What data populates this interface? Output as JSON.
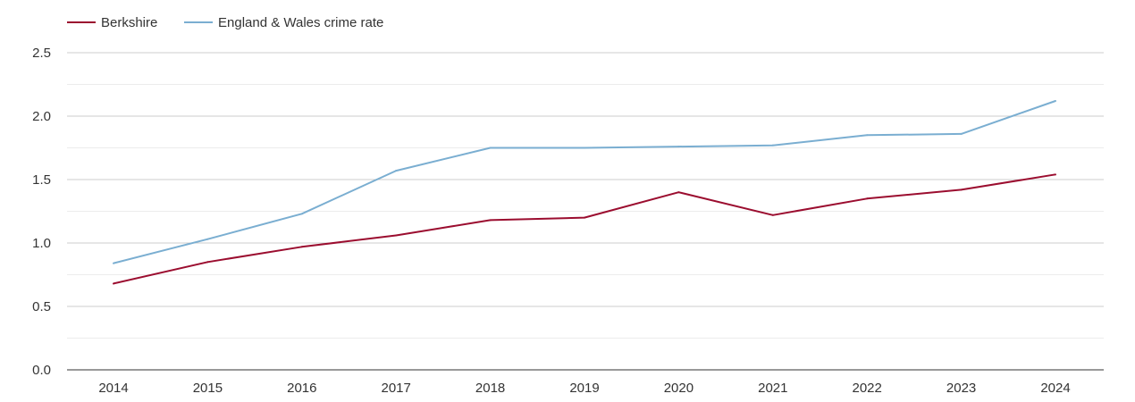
{
  "chart_data": {
    "type": "line",
    "title": "",
    "xlabel": "",
    "ylabel": "",
    "x": [
      "2014",
      "2015",
      "2016",
      "2017",
      "2018",
      "2019",
      "2020",
      "2021",
      "2022",
      "2023",
      "2024"
    ],
    "ylim": [
      0,
      2.5
    ],
    "y_ticks": [
      "0.0",
      "0.5",
      "1.0",
      "1.5",
      "2.0",
      "2.5"
    ],
    "grid": true,
    "legend_position": "top-left",
    "series": [
      {
        "name": "Berkshire",
        "color": "#9b0d2f",
        "values": [
          0.68,
          0.85,
          0.97,
          1.06,
          1.18,
          1.2,
          1.4,
          1.22,
          1.35,
          1.42,
          1.54
        ]
      },
      {
        "name": "England & Wales crime rate",
        "color": "#7aaed1",
        "values": [
          0.84,
          1.03,
          1.23,
          1.57,
          1.75,
          1.75,
          1.76,
          1.77,
          1.85,
          1.86,
          2.12
        ]
      }
    ]
  }
}
